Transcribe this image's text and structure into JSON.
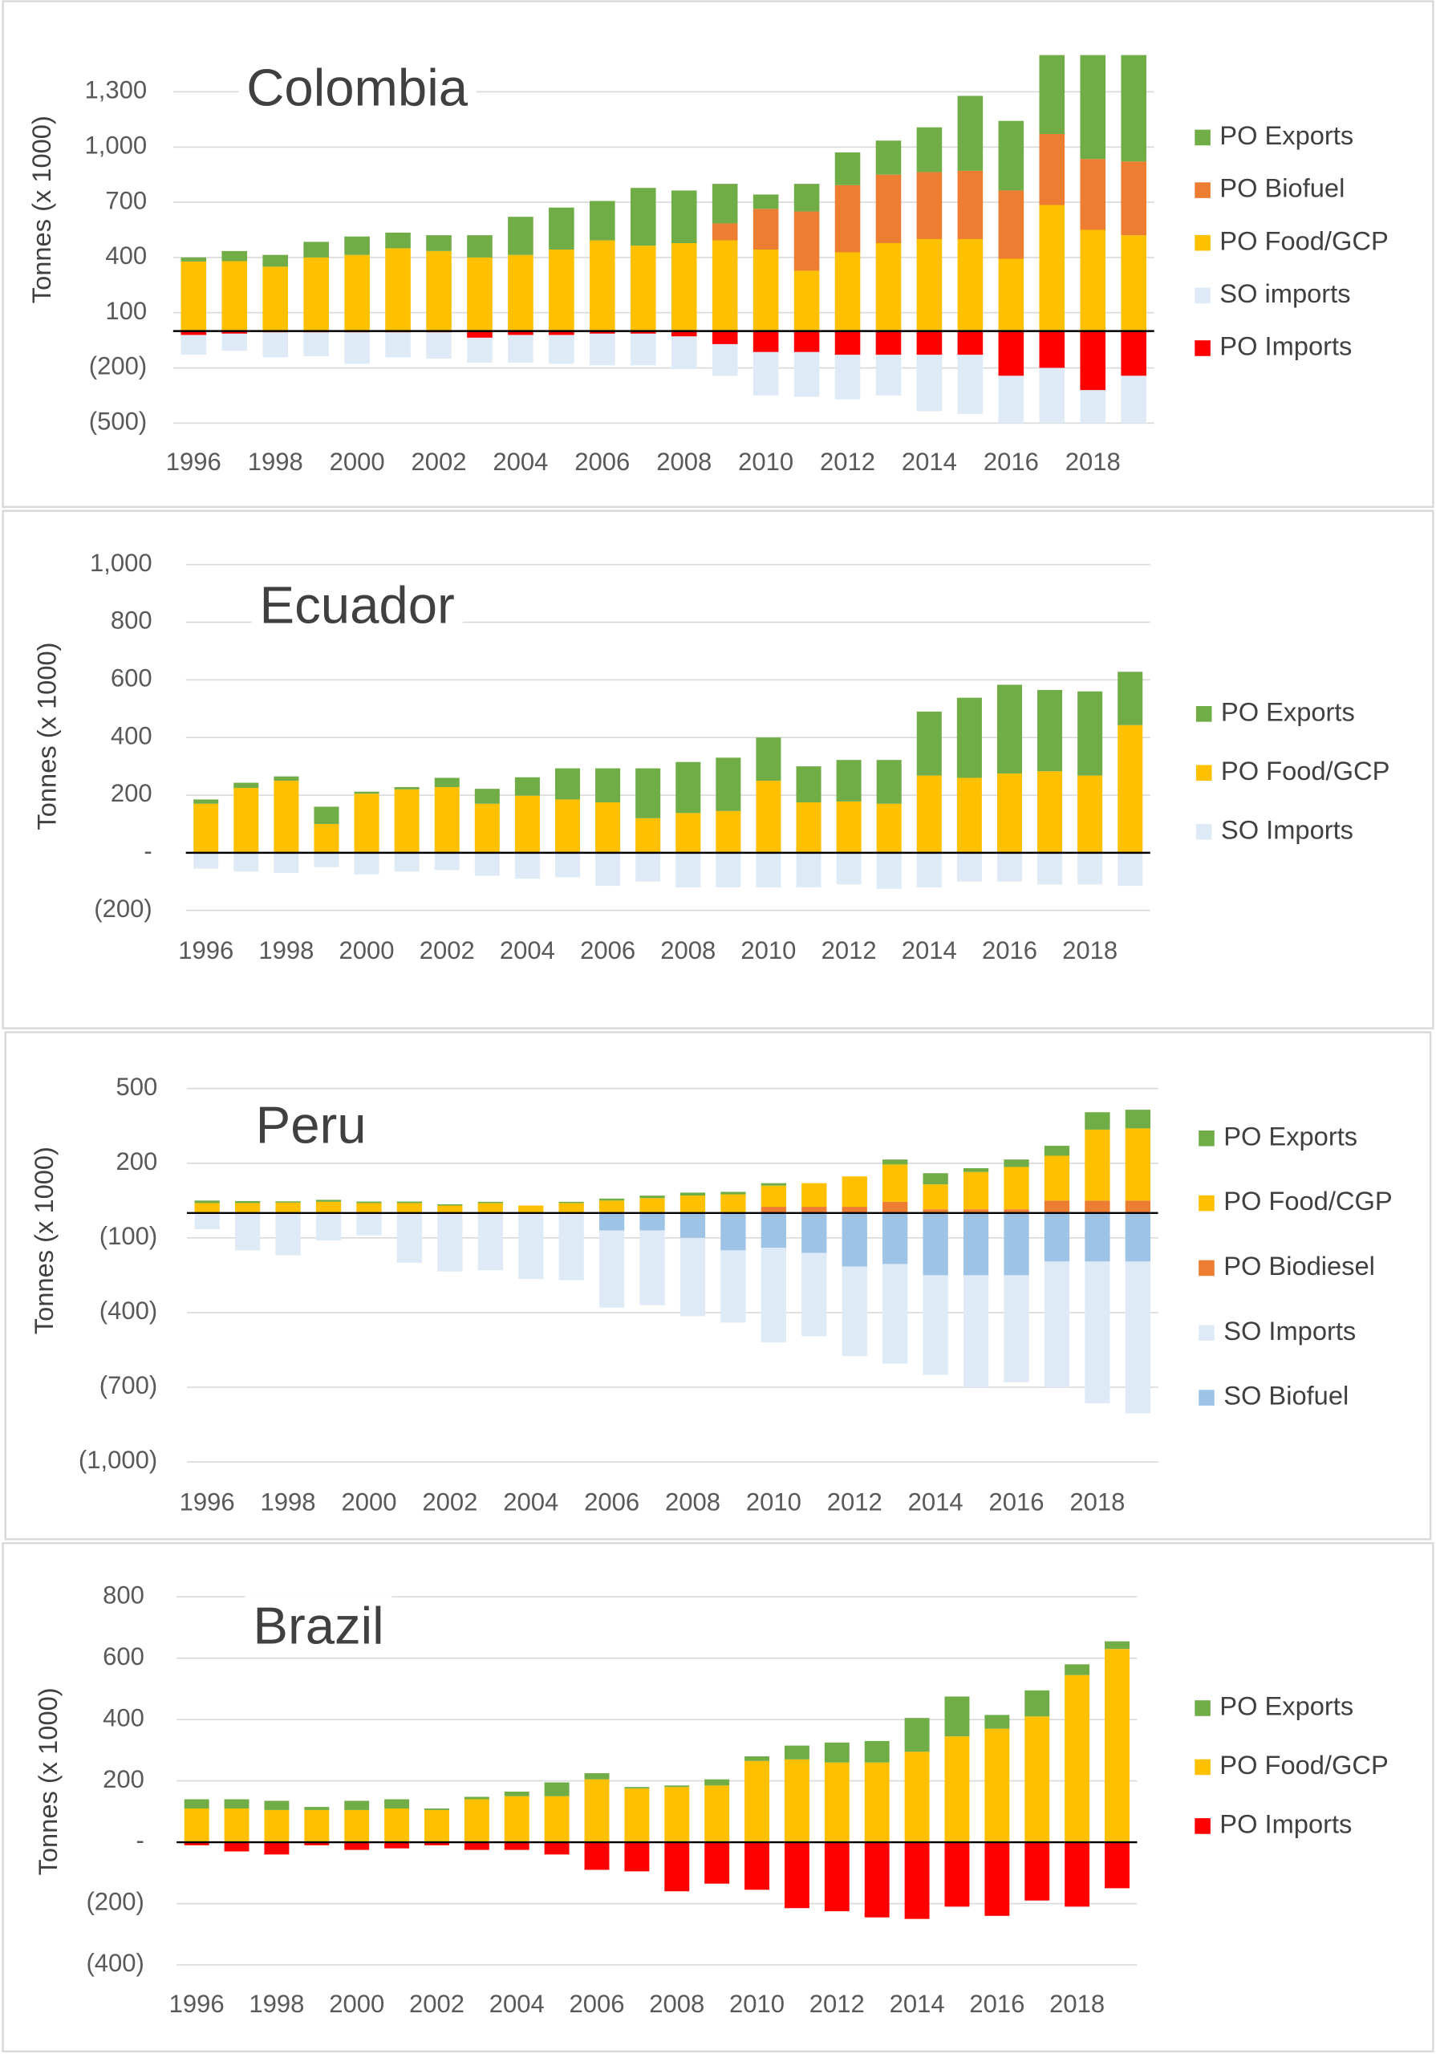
{
  "chart_data": [
    {
      "type": "bar",
      "stacked": true,
      "title": "Colombia",
      "y_label": "Tonnes (x 1000)",
      "categories": [
        "1996",
        null,
        "1998",
        null,
        "2000",
        null,
        "2002",
        null,
        "2004",
        null,
        "2006",
        null,
        "2008",
        null,
        "2010",
        null,
        "2012",
        null,
        "2014",
        null,
        "2016",
        null,
        "2018",
        null
      ],
      "series": [
        {
          "name": "PO Exports",
          "color": "#70ad47",
          "values": [
            22,
            55,
            64,
            85,
            100,
            85,
            86,
            121,
            207,
            228,
            214,
            314,
            286,
            215,
            78,
            150,
            178,
            185,
            243,
            407,
            378,
            450,
            600,
            600
          ]
        },
        {
          "name": "PO Biofuel",
          "color": "#ed7d31",
          "values": [
            0,
            0,
            0,
            0,
            0,
            0,
            0,
            0,
            0,
            0,
            0,
            0,
            0,
            92,
            221,
            322,
            365,
            372,
            364,
            371,
            371,
            386,
            385,
            400
          ]
        },
        {
          "name": "PO Food/GCP",
          "color": "#ffc000",
          "values": [
            378,
            380,
            350,
            400,
            414,
            450,
            435,
            400,
            414,
            443,
            493,
            464,
            478,
            493,
            443,
            328,
            428,
            478,
            500,
            500,
            393,
            685,
            550,
            521
          ]
        },
        {
          "name": "SO imports",
          "color": "#deebf7",
          "values": [
            -107,
            -93,
            -136,
            -129,
            -171,
            -136,
            -143,
            -135,
            -150,
            -157,
            -172,
            -172,
            -178,
            -172,
            -236,
            -243,
            -242,
            -221,
            -307,
            -321,
            -300,
            -300,
            -250,
            -300
          ]
        },
        {
          "name": "PO Imports",
          "color": "#ff0000",
          "values": [
            -21,
            -14,
            -7,
            -7,
            -7,
            -7,
            -7,
            -36,
            -21,
            -21,
            -14,
            -14,
            -29,
            -71,
            -114,
            -114,
            -129,
            -129,
            -129,
            -129,
            -243,
            -200,
            -321,
            -243
          ]
        }
      ],
      "ylim": [
        -500,
        1500
      ],
      "yticks": [
        {
          "value": 1300,
          "label": "1,300"
        },
        {
          "value": 1000,
          "label": "1,000"
        },
        700,
        400,
        100,
        {
          "value": -200,
          "label": "(200)"
        },
        {
          "value": -500,
          "label": "(500)"
        }
      ],
      "grid": true,
      "legend": "right"
    },
    {
      "type": "bar",
      "stacked": true,
      "title": "Ecuador",
      "y_label": "Tonnes (x 1000)",
      "categories": [
        "1996",
        null,
        "1998",
        null,
        "2000",
        null,
        "2002",
        null,
        "2004",
        null,
        "2006",
        null,
        "2008",
        null,
        "2010",
        null,
        "2012",
        null,
        "2014",
        null,
        "2016",
        null,
        "2018",
        null
      ],
      "series": [
        {
          "name": "PO Exports",
          "color": "#70ad47",
          "values": [
            15,
            18,
            15,
            60,
            7,
            8,
            32,
            52,
            64,
            108,
            118,
            173,
            177,
            185,
            150,
            125,
            144,
            152,
            222,
            278,
            308,
            282,
            292,
            185
          ]
        },
        {
          "name": "PO Food/GCP",
          "color": "#ffc000",
          "values": [
            170,
            225,
            250,
            100,
            205,
            220,
            228,
            170,
            198,
            185,
            175,
            120,
            138,
            145,
            250,
            175,
            178,
            170,
            268,
            260,
            275,
            283,
            268,
            443
          ]
        },
        {
          "name": "SO Imports",
          "color": "#deebf7",
          "values": [
            -55,
            -65,
            -70,
            -50,
            -75,
            -65,
            -60,
            -80,
            -90,
            -85,
            -115,
            -100,
            -120,
            -120,
            -120,
            -120,
            -110,
            -125,
            -120,
            -100,
            -100,
            -110,
            -110,
            -115
          ]
        }
      ],
      "ylim": [
        -200,
        1000
      ],
      "yticks": [
        {
          "value": 1000,
          "label": "1,000"
        },
        800,
        600,
        400,
        200,
        {
          "value": 0,
          "label": "-"
        },
        {
          "value": -200,
          "label": "(200)"
        }
      ],
      "grid": true,
      "legend": "right"
    },
    {
      "type": "bar",
      "stacked": true,
      "title": "Peru",
      "y_label": "Tonnes (x 1000)",
      "categories": [
        "1996",
        null,
        "1998",
        null,
        "2000",
        null,
        "2002",
        null,
        "2004",
        null,
        "2006",
        null,
        "2008",
        null,
        "2010",
        null,
        "2012",
        null,
        "2014",
        null,
        "2016",
        null,
        "2018",
        null
      ],
      "series": [
        {
          "name": "PO Exports",
          "color": "#70ad47",
          "values": [
            10,
            8,
            5,
            8,
            6,
            6,
            5,
            5,
            0,
            5,
            8,
            10,
            12,
            10,
            10,
            0,
            0,
            20,
            45,
            15,
            30,
            40,
            70,
            75
          ]
        },
        {
          "name": "PO Food/CGP",
          "color": "#ffc000",
          "values": [
            40,
            40,
            42,
            45,
            40,
            40,
            30,
            40,
            30,
            40,
            50,
            60,
            70,
            75,
            85,
            95,
            122,
            150,
            100,
            150,
            170,
            180,
            285,
            290
          ]
        },
        {
          "name": "PO Biodiesel",
          "color": "#ed7d31",
          "values": [
            0,
            0,
            0,
            0,
            0,
            0,
            0,
            0,
            0,
            0,
            0,
            0,
            0,
            0,
            25,
            25,
            25,
            45,
            15,
            15,
            15,
            50,
            50,
            50
          ]
        },
        {
          "name": "SO Imports",
          "color": "#deebf7",
          "values": [
            -65,
            -150,
            -170,
            -110,
            -90,
            -200,
            -235,
            -230,
            -265,
            -270,
            -310,
            -300,
            -315,
            -290,
            -380,
            -335,
            -360,
            -400,
            -400,
            -450,
            -430,
            -505,
            -570,
            -610
          ]
        },
        {
          "name": "SO Biofuel",
          "color": "#9dc3e6",
          "values": [
            0,
            0,
            0,
            0,
            0,
            0,
            0,
            0,
            0,
            0,
            -70,
            -70,
            -100,
            -150,
            -140,
            -160,
            -215,
            -205,
            -250,
            -250,
            -250,
            -195,
            -195,
            -195
          ]
        }
      ],
      "ylim": [
        -1000,
        500
      ],
      "yticks": [
        500,
        200,
        {
          "value": -100,
          "label": "(100)"
        },
        {
          "value": -400,
          "label": "(400)"
        },
        {
          "value": -700,
          "label": "(700)"
        },
        {
          "value": -1000,
          "label": "(1,000)"
        }
      ],
      "grid": true,
      "legend": "right"
    },
    {
      "type": "bar",
      "stacked": true,
      "title": "Brazil",
      "y_label": "Tonnes (x 1000)",
      "categories": [
        "1996",
        null,
        "1998",
        null,
        "2000",
        null,
        "2002",
        null,
        "2004",
        null,
        "2006",
        null,
        "2008",
        null,
        "2010",
        null,
        "2012",
        null,
        "2014",
        null,
        "2016",
        null,
        "2018",
        null
      ],
      "series": [
        {
          "name": "PO Exports",
          "color": "#70ad47",
          "values": [
            30,
            30,
            30,
            10,
            30,
            30,
            5,
            8,
            15,
            45,
            20,
            5,
            5,
            20,
            15,
            45,
            65,
            70,
            110,
            130,
            45,
            85,
            35,
            25
          ]
        },
        {
          "name": "PO Food/GCP",
          "color": "#ffc000",
          "values": [
            110,
            110,
            105,
            105,
            105,
            110,
            105,
            140,
            150,
            150,
            205,
            175,
            180,
            185,
            265,
            270,
            260,
            260,
            295,
            345,
            370,
            410,
            545,
            630
          ]
        },
        {
          "name": "PO Imports",
          "color": "#ff0000",
          "values": [
            -10,
            -30,
            -40,
            -10,
            -25,
            -20,
            -10,
            -25,
            -25,
            -40,
            -90,
            -95,
            -160,
            -135,
            -155,
            -215,
            -225,
            -245,
            -250,
            -210,
            -240,
            -190,
            -210,
            -150
          ]
        }
      ],
      "ylim": [
        -400,
        800
      ],
      "yticks": [
        800,
        600,
        400,
        200,
        {
          "value": 0,
          "label": "-"
        },
        {
          "value": -200,
          "label": "(200)"
        },
        {
          "value": -400,
          "label": "(400)"
        }
      ],
      "grid": true,
      "legend": "right"
    }
  ]
}
